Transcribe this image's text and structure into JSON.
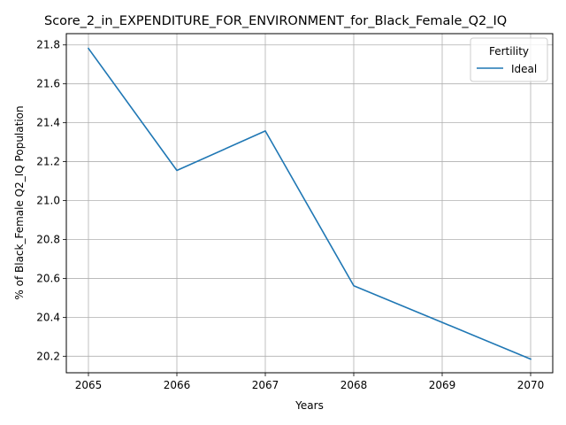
{
  "chart_data": {
    "type": "line",
    "title": "Score_2_in_EXPENDITURE_FOR_ENVIRONMENT_for_Black_Female_Q2_IQ",
    "xlabel": "Years",
    "ylabel": "% of Black_Female Q2_IQ Population",
    "x": [
      2065,
      2066,
      2067,
      2068,
      2069,
      2070
    ],
    "xlim": [
      2064.75,
      2070.25
    ],
    "ylim": [
      20.115,
      21.858
    ],
    "xticks": [
      2065,
      2066,
      2067,
      2068,
      2069,
      2070
    ],
    "yticks": [
      20.2,
      20.4,
      20.6,
      20.8,
      21.0,
      21.2,
      21.4,
      21.6,
      21.8
    ],
    "ytick_labels": [
      "20.2",
      "20.4",
      "20.6",
      "20.8",
      "21.0",
      "21.2",
      "21.4",
      "21.6",
      "21.8"
    ],
    "grid": true,
    "legend": {
      "title": "Fertility",
      "placement": "top-right"
    },
    "series": [
      {
        "name": "Ideal",
        "color": "#1f77b4",
        "values": [
          21.782,
          21.155,
          21.358,
          20.562,
          20.374,
          20.185
        ]
      }
    ]
  }
}
